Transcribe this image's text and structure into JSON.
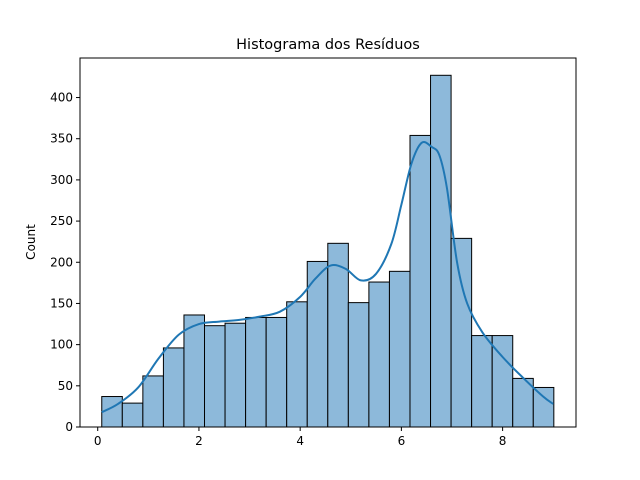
{
  "chart_data": {
    "type": "bar",
    "subtype": "histogram-with-kde",
    "title": "Histograma dos Resíduos",
    "xlabel": "",
    "ylabel": "Count",
    "xlim": [
      -0.35,
      9.45
    ],
    "ylim": [
      0,
      448
    ],
    "xticks": [
      0,
      2,
      4,
      6,
      8
    ],
    "yticks": [
      0,
      50,
      100,
      150,
      200,
      250,
      300,
      350,
      400
    ],
    "grid": false,
    "bar_color": "#8db9da",
    "edge_color": "#000000",
    "kde_color": "#1f77b4",
    "bin_edges": [
      0.08,
      0.486,
      0.892,
      1.298,
      1.704,
      2.11,
      2.516,
      2.922,
      3.328,
      3.734,
      4.14,
      4.546,
      4.952,
      5.358,
      5.764,
      6.17,
      6.576,
      6.982,
      7.388,
      7.794,
      8.2,
      8.606,
      9.012
    ],
    "counts": [
      37,
      29,
      62,
      96,
      136,
      123,
      126,
      133,
      133,
      152,
      201,
      223,
      151,
      176,
      189,
      354,
      427,
      229,
      111,
      111,
      59,
      48
    ],
    "kde": {
      "x": [
        0.08,
        0.4,
        0.8,
        1.2,
        1.6,
        2.0,
        2.4,
        2.8,
        3.2,
        3.6,
        4.0,
        4.3,
        4.6,
        4.9,
        5.2,
        5.5,
        5.8,
        6.0,
        6.2,
        6.4,
        6.6,
        6.75,
        6.9,
        7.1,
        7.3,
        7.6,
        8.0,
        8.4,
        8.8,
        9.0
      ],
      "y": [
        18,
        28,
        48,
        83,
        112,
        125,
        128,
        130,
        134,
        140,
        158,
        180,
        196,
        192,
        178,
        186,
        222,
        270,
        320,
        345,
        340,
        330,
        290,
        200,
        150,
        115,
        85,
        60,
        37,
        28
      ]
    }
  }
}
